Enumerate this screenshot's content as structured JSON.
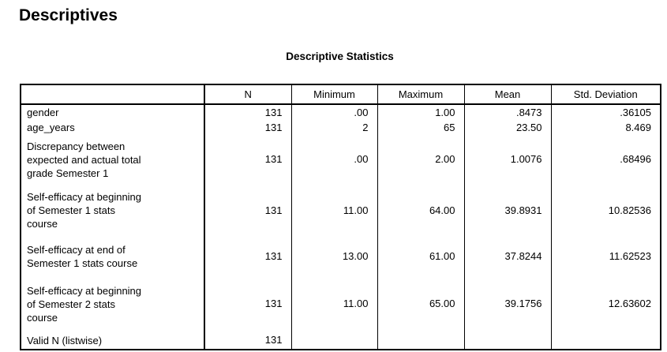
{
  "page": {
    "heading": "Descriptives",
    "table_title": "Descriptive Statistics"
  },
  "table": {
    "columns": [
      "",
      "N",
      "Minimum",
      "Maximum",
      "Mean",
      "Std. Deviation"
    ],
    "rows": [
      {
        "label": "gender",
        "values": [
          "131",
          ".00",
          "1.00",
          ".8473",
          ".36105"
        ]
      },
      {
        "label": "age_years",
        "values": [
          "131",
          "2",
          "65",
          "23.50",
          "8.469"
        ]
      },
      {
        "label": "Discrepancy between expected and actual total grade Semester 1",
        "values": [
          "131",
          ".00",
          "2.00",
          "1.0076",
          ".68496"
        ]
      },
      {
        "label": "Self-efficacy at beginning of Semester 1 stats course",
        "values": [
          "131",
          "11.00",
          "64.00",
          "39.8931",
          "10.82536"
        ]
      },
      {
        "label": "Self-efficacy at end of Semester 1 stats course",
        "values": [
          "131",
          "13.00",
          "61.00",
          "37.8244",
          "11.62523"
        ]
      },
      {
        "label": "Self-efficacy at beginning of Semester 2 stats course",
        "values": [
          "131",
          "11.00",
          "65.00",
          "39.1756",
          "12.63602"
        ]
      },
      {
        "label": "Valid N (listwise)",
        "values": [
          "131",
          "",
          "",
          "",
          ""
        ]
      }
    ]
  },
  "colors": {
    "text": "#000000",
    "border": "#000000",
    "background": "#ffffff"
  }
}
